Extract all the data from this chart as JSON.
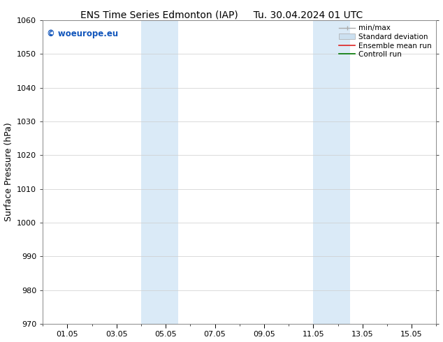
{
  "title_left": "ENS Time Series Edmonton (IAP)",
  "title_right": "Tu. 30.04.2024 01 UTC",
  "ylabel": "Surface Pressure (hPa)",
  "ylim": [
    970,
    1060
  ],
  "yticks": [
    970,
    980,
    990,
    1000,
    1010,
    1020,
    1030,
    1040,
    1050,
    1060
  ],
  "xtick_labels": [
    "01.05",
    "03.05",
    "05.05",
    "07.05",
    "09.05",
    "11.05",
    "13.05",
    "15.05"
  ],
  "xtick_positions": [
    1,
    3,
    5,
    7,
    9,
    11,
    13,
    15
  ],
  "xlim": [
    0,
    16
  ],
  "shaded_bands": [
    {
      "x_start": 4.0,
      "x_end": 5.5
    },
    {
      "x_start": 11.0,
      "x_end": 12.5
    }
  ],
  "shaded_color": "#daeaf7",
  "watermark_text": "© woeurope.eu",
  "watermark_color": "#1155bb",
  "bg_color": "#ffffff",
  "grid_color": "#cccccc",
  "title_fontsize": 10,
  "axis_label_fontsize": 9,
  "tick_fontsize": 8,
  "legend_fontsize": 7.5,
  "watermark_fontsize": 8.5
}
